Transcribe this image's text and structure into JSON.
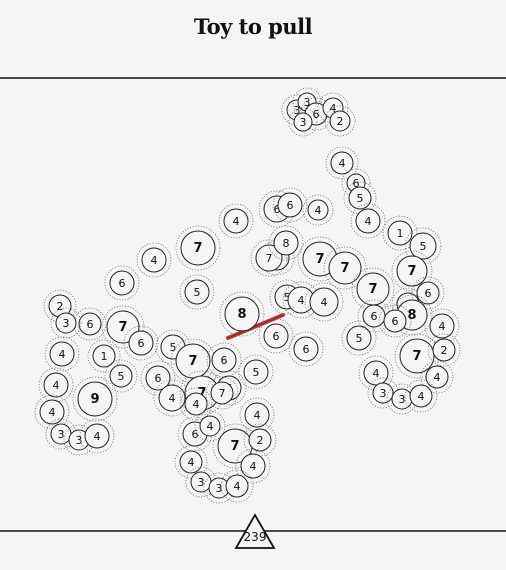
{
  "title": "Toy to pull",
  "score": "239",
  "colors": {
    "background": "#f6f4f4",
    "ink": "#111111",
    "connector": "#c0392b"
  },
  "coins": [
    {
      "id": "c1",
      "v": "3"
    },
    {
      "id": "c2",
      "v": "3"
    },
    {
      "id": "c3",
      "v": "6"
    },
    {
      "id": "c4",
      "v": "4"
    },
    {
      "id": "c5",
      "v": "2"
    },
    {
      "id": "c6",
      "v": "3"
    },
    {
      "id": "c7",
      "v": "4"
    },
    {
      "id": "c8",
      "v": "6"
    },
    {
      "id": "c9",
      "v": "5"
    },
    {
      "id": "c10",
      "v": "4"
    },
    {
      "id": "c11",
      "v": "1"
    },
    {
      "id": "c12",
      "v": "5"
    },
    {
      "id": "c13",
      "v": "6"
    },
    {
      "id": "c14",
      "v": "4"
    },
    {
      "id": "c15",
      "v": "6"
    },
    {
      "id": "c16",
      "v": "4"
    },
    {
      "id": "c17",
      "v": "7"
    },
    {
      "id": "c18",
      "v": "4"
    },
    {
      "id": "c19",
      "v": "1"
    },
    {
      "id": "c20",
      "v": "7"
    },
    {
      "id": "c21",
      "v": "7"
    },
    {
      "id": "c22",
      "v": "6"
    },
    {
      "id": "c23",
      "v": "5"
    },
    {
      "id": "c24",
      "v": "7"
    },
    {
      "id": "c25",
      "v": "7"
    },
    {
      "id": "c26",
      "v": "7"
    },
    {
      "id": "c27",
      "v": "8"
    },
    {
      "id": "c28",
      "v": "6"
    },
    {
      "id": "c29",
      "v": "6"
    },
    {
      "id": "c30",
      "v": "2"
    },
    {
      "id": "c31",
      "v": "6"
    },
    {
      "id": "c32",
      "v": "7"
    },
    {
      "id": "c33",
      "v": "6"
    },
    {
      "id": "c34",
      "v": "3"
    },
    {
      "id": "c35",
      "v": "8"
    },
    {
      "id": "c36",
      "v": "5"
    },
    {
      "id": "c37",
      "v": "4"
    },
    {
      "id": "c38",
      "v": "4"
    },
    {
      "id": "c39",
      "v": "9"
    },
    {
      "id": "c40",
      "v": "4"
    },
    {
      "id": "c41",
      "v": "4"
    },
    {
      "id": "c42",
      "v": "3"
    },
    {
      "id": "c43",
      "v": "3"
    },
    {
      "id": "c44",
      "v": "4"
    },
    {
      "id": "c45",
      "v": "5"
    },
    {
      "id": "c46",
      "v": "7"
    },
    {
      "id": "c47",
      "v": "6"
    },
    {
      "id": "c48",
      "v": "6"
    },
    {
      "id": "c49",
      "v": "4"
    },
    {
      "id": "c50",
      "v": "7"
    },
    {
      "id": "c51",
      "v": "6"
    },
    {
      "id": "c52",
      "v": "4"
    },
    {
      "id": "c53",
      "v": "4"
    },
    {
      "id": "c54",
      "v": "6"
    },
    {
      "id": "c55",
      "v": "4"
    },
    {
      "id": "c56",
      "v": "7"
    },
    {
      "id": "c57",
      "v": "2"
    },
    {
      "id": "c58",
      "v": "4"
    },
    {
      "id": "c59",
      "v": "4"
    },
    {
      "id": "c60",
      "v": "3"
    },
    {
      "id": "c61",
      "v": "3"
    },
    {
      "id": "c62",
      "v": "4"
    },
    {
      "id": "c63",
      "v": "6"
    },
    {
      "id": "c64",
      "v": "6"
    },
    {
      "id": "c65",
      "v": "5"
    },
    {
      "id": "c66",
      "v": "7"
    },
    {
      "id": "c67",
      "v": "6"
    },
    {
      "id": "c68",
      "v": "8"
    },
    {
      "id": "c69",
      "v": "4"
    },
    {
      "id": "c70",
      "v": "2"
    },
    {
      "id": "c71",
      "v": "7"
    },
    {
      "id": "c72",
      "v": "4"
    },
    {
      "id": "c73",
      "v": "4"
    },
    {
      "id": "c74",
      "v": "3"
    },
    {
      "id": "c75",
      "v": "3"
    },
    {
      "id": "c76",
      "v": "4"
    },
    {
      "id": "c77",
      "v": "5"
    },
    {
      "id": "c78",
      "v": "1"
    },
    {
      "id": "c79",
      "v": "5"
    },
    {
      "id": "c80",
      "v": "6"
    },
    {
      "id": "c81",
      "v": "4"
    }
  ]
}
